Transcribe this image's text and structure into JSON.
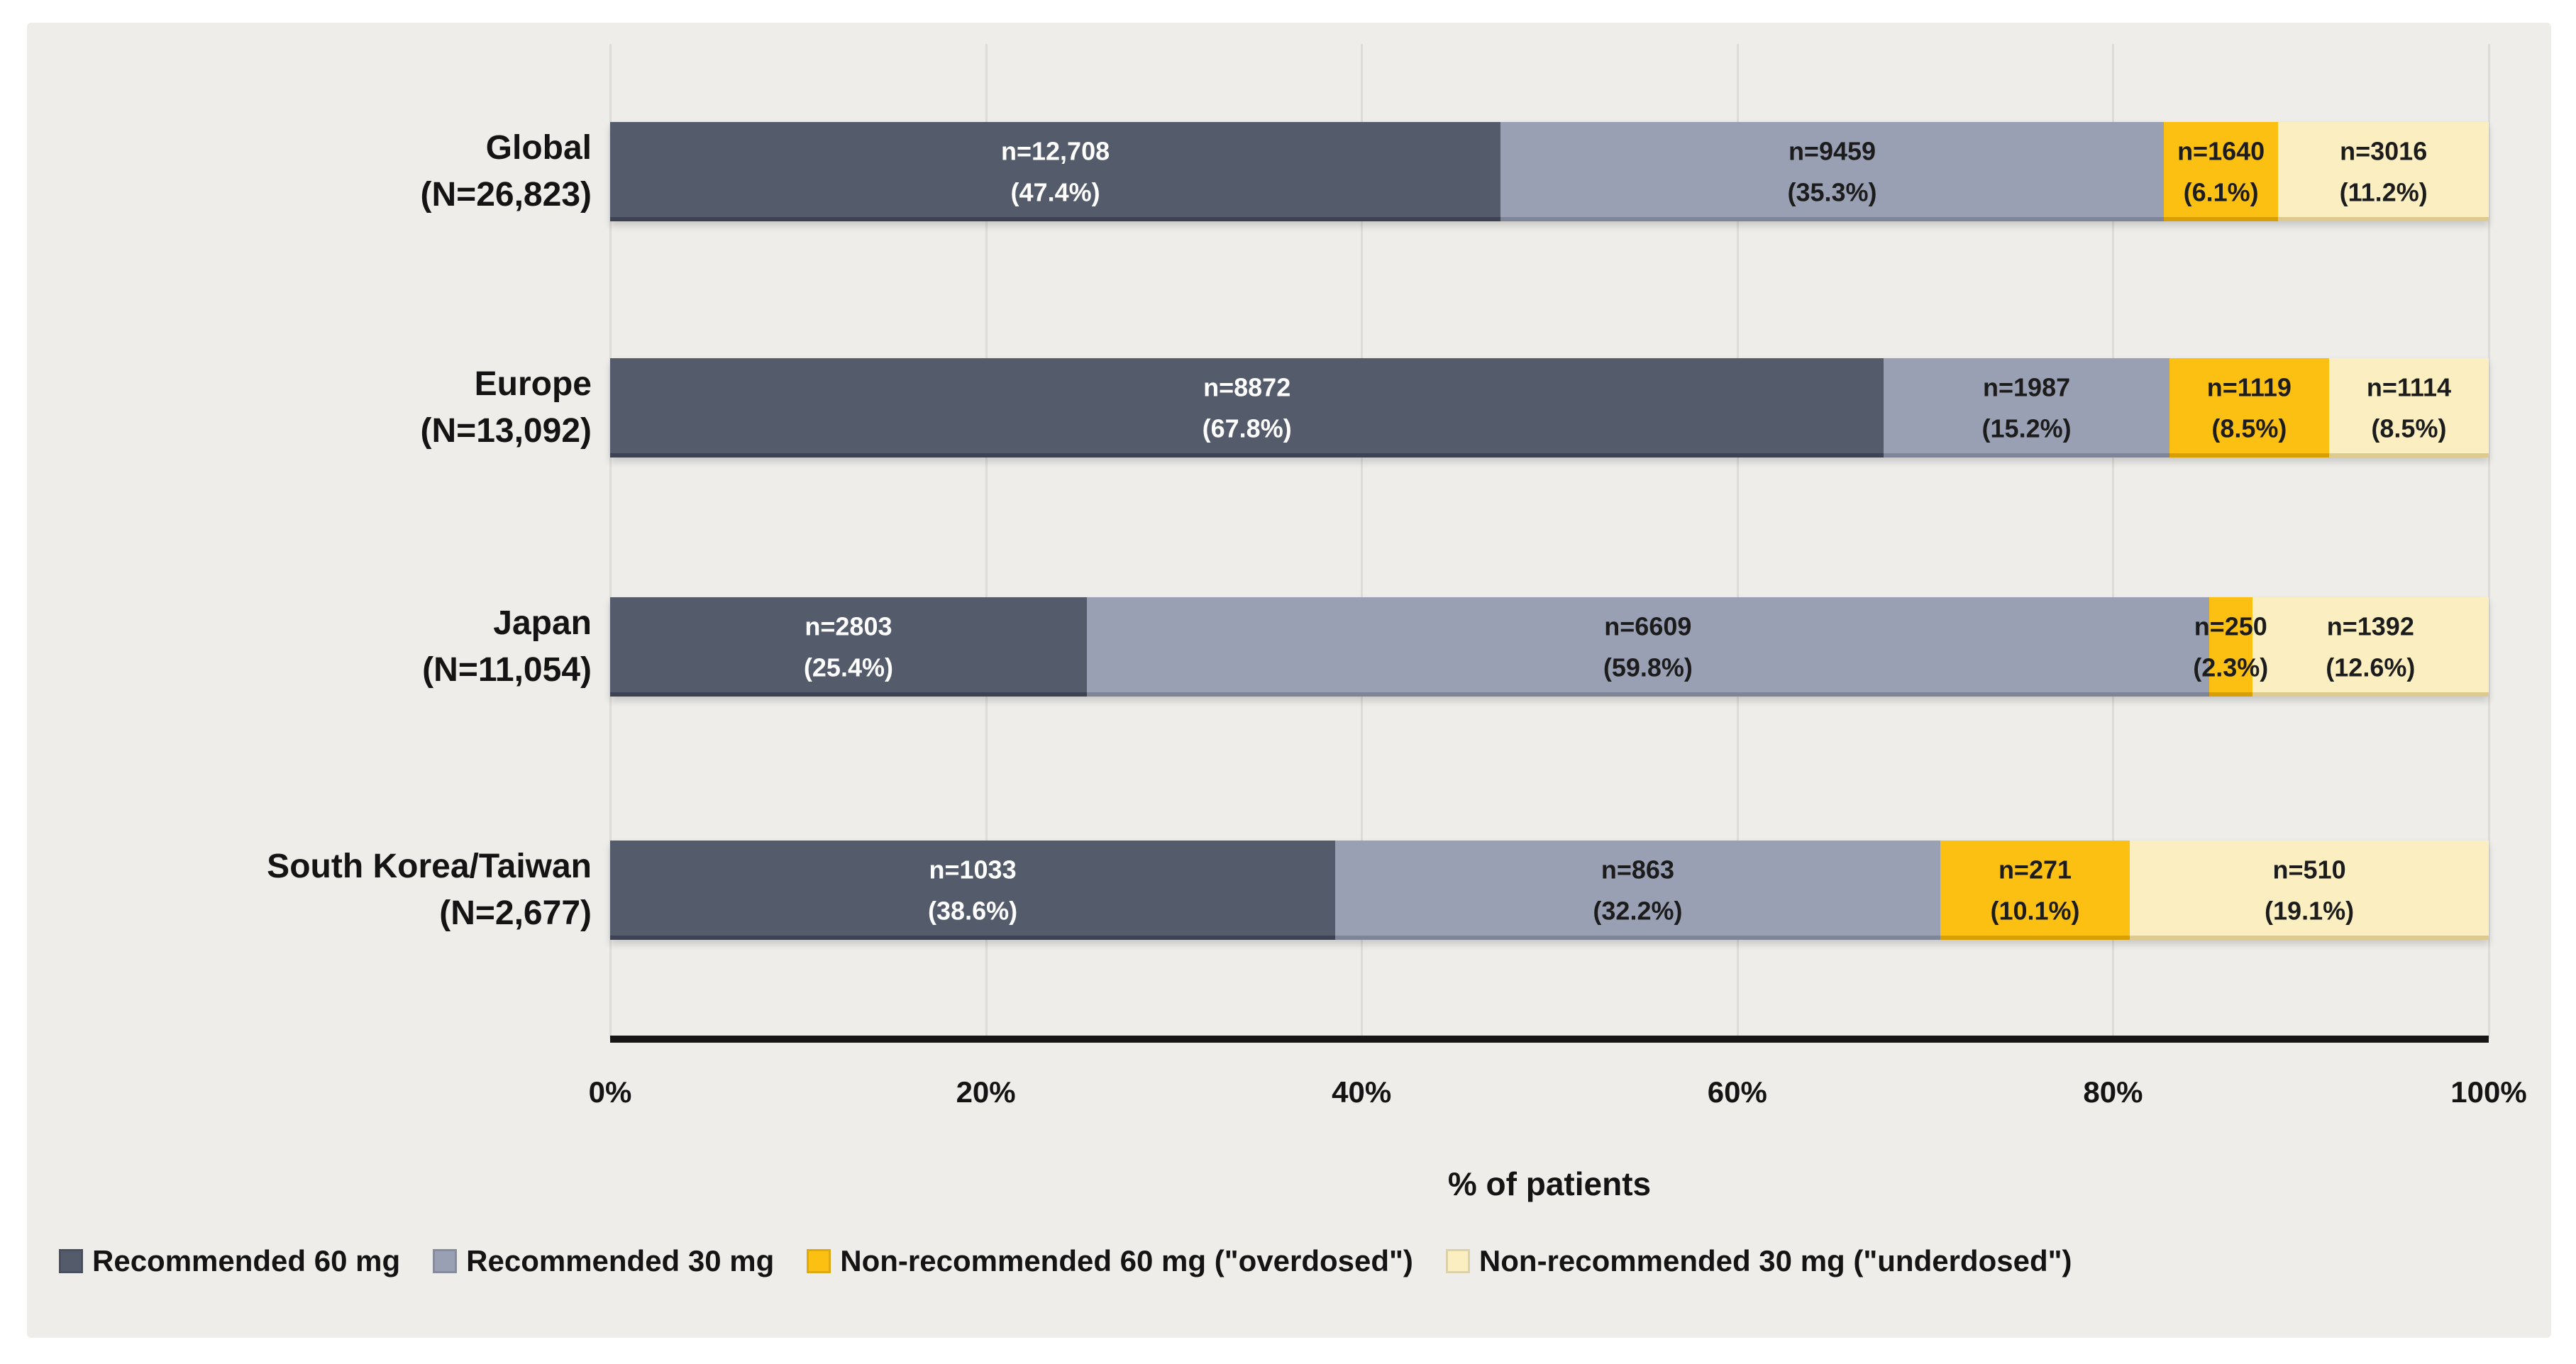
{
  "chart_data": {
    "type": "bar",
    "orientation": "horizontal",
    "stacked": true,
    "xlabel": "% of patients",
    "xlim": [
      0,
      100
    ],
    "x_ticks": [
      "0%",
      "20%",
      "40%",
      "60%",
      "80%",
      "100%"
    ],
    "grid": "vertical-only",
    "legend_position": "bottom-left",
    "series": [
      {
        "name": "Recommended 60 mg",
        "color": "#545b6b",
        "label_color": "#ffffff",
        "edge_color": "#3d4352"
      },
      {
        "name": "Recommended 30 mg",
        "color": "#9aa0b3",
        "label_color": "#1c1c1c",
        "edge_color": "#7f8599"
      },
      {
        "name": "Non-recommended 60 mg (\"overdosed\")",
        "color": "#fcc013",
        "label_color": "#1c1c1c",
        "edge_color": "#d89f05"
      },
      {
        "name": "Non-recommended 30 mg (\"underdosed\")",
        "color": "#fbefc2",
        "label_color": "#1c1c1c",
        "edge_color": "#dcca8f"
      }
    ],
    "categories": [
      {
        "line1": "Global",
        "line2": "(N=26,823)"
      },
      {
        "line1": "Europe",
        "line2": "(N=13,092)"
      },
      {
        "line1": "Japan",
        "line2": "(N=11,054)"
      },
      {
        "line1": "South Korea/Taiwan",
        "line2": "(N=2,677)"
      }
    ],
    "rows": [
      {
        "segments": [
          {
            "n_label": "n=12,708",
            "pct_label": "(47.4%)",
            "n": 12708,
            "pct": 47.4
          },
          {
            "n_label": "n=9459",
            "pct_label": "(35.3%)",
            "n": 9459,
            "pct": 35.3
          },
          {
            "n_label": "n=1640",
            "pct_label": "(6.1%)",
            "n": 1640,
            "pct": 6.1
          },
          {
            "n_label": "n=3016",
            "pct_label": "(11.2%)",
            "n": 3016,
            "pct": 11.2
          }
        ]
      },
      {
        "segments": [
          {
            "n_label": "n=8872",
            "pct_label": "(67.8%)",
            "n": 8872,
            "pct": 67.8
          },
          {
            "n_label": "n=1987",
            "pct_label": "(15.2%)",
            "n": 1987,
            "pct": 15.2
          },
          {
            "n_label": "n=1119",
            "pct_label": "(8.5%)",
            "n": 1119,
            "pct": 8.5
          },
          {
            "n_label": "n=1114",
            "pct_label": "(8.5%)",
            "n": 1114,
            "pct": 8.5
          }
        ]
      },
      {
        "segments": [
          {
            "n_label": "n=2803",
            "pct_label": "(25.4%)",
            "n": 2803,
            "pct": 25.4
          },
          {
            "n_label": "n=6609",
            "pct_label": "(59.8%)",
            "n": 6609,
            "pct": 59.8
          },
          {
            "n_label": "n=250",
            "pct_label": "(2.3%)",
            "n": 250,
            "pct": 2.3
          },
          {
            "n_label": "n=1392",
            "pct_label": "(12.6%)",
            "n": 1392,
            "pct": 12.6
          }
        ]
      },
      {
        "segments": [
          {
            "n_label": "n=1033",
            "pct_label": "(38.6%)",
            "n": 1033,
            "pct": 38.6
          },
          {
            "n_label": "n=863",
            "pct_label": "(32.2%)",
            "n": 863,
            "pct": 32.2
          },
          {
            "n_label": "n=271",
            "pct_label": "(10.1%)",
            "n": 271,
            "pct": 10.1
          },
          {
            "n_label": "n=510",
            "pct_label": "(19.1%)",
            "n": 510,
            "pct": 19.1
          }
        ]
      }
    ]
  },
  "colors": {
    "panel_bg": "#eeedea",
    "page_bg": "#ffffff",
    "gridline": "#dedcd8",
    "axis_line": "#161616"
  }
}
